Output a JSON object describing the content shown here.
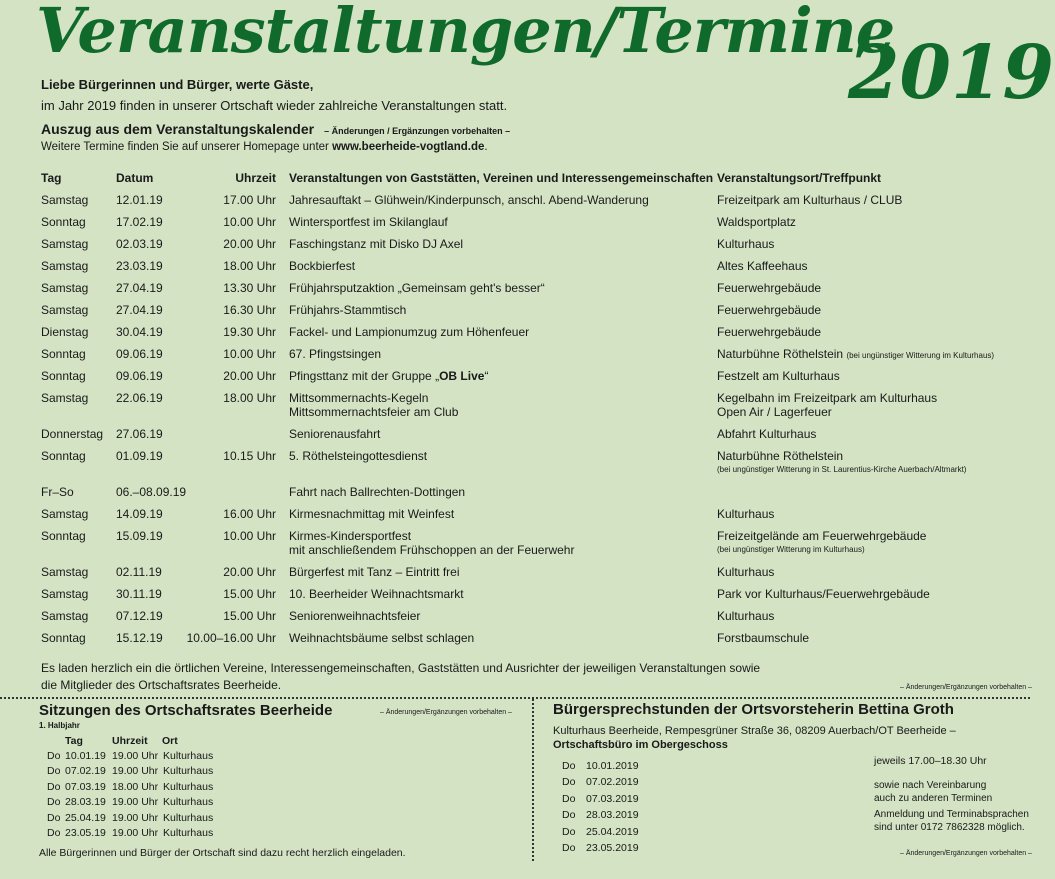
{
  "header": {
    "title": "Veranstaltungen/Termine",
    "year": "2019",
    "greeting": "Liebe Bürgerinnen und Bürger, werte Gäste,",
    "intro": "im Jahr 2019 finden in unserer Ortschaft wieder zahlreiche Veranstaltungen statt.",
    "excerpt": "Auszug aus dem Veranstaltungskalender",
    "excerpt_note": "– Änderungen / Ergänzungen vorbehalten –",
    "more": "Weitere Termine finden Sie auf unserer Homepage unter ",
    "homepage": "www.beerheide-vogtland.de",
    "more_end": "."
  },
  "table": {
    "columns": [
      "Tag",
      "Datum",
      "Uhrzeit",
      "Veranstaltungen von Gaststätten, Vereinen und Interessengemeinschaften",
      "Veranstaltungsort/Treffpunkt"
    ],
    "rows": [
      {
        "tag": "Samstag",
        "datum": "12.01.19",
        "zeit": "17.00 Uhr",
        "event": [
          "Jahresauftakt – Glühwein/Kinderpunsch, anschl. Abend-Wanderung"
        ],
        "ort": [
          "Freizeitpark am Kulturhaus / CLUB"
        ]
      },
      {
        "tag": "Sonntag",
        "datum": "17.02.19",
        "zeit": "10.00 Uhr",
        "event": [
          "Wintersportfest im Skilanglauf"
        ],
        "ort": [
          "Waldsportplatz"
        ]
      },
      {
        "tag": "Samstag",
        "datum": "02.03.19",
        "zeit": "20.00 Uhr",
        "event": [
          "Faschingstanz mit Disko DJ Axel"
        ],
        "ort": [
          "Kulturhaus"
        ]
      },
      {
        "tag": "Samstag",
        "datum": "23.03.19",
        "zeit": "18.00 Uhr",
        "event": [
          "Bockbierfest"
        ],
        "ort": [
          "Altes Kaffeehaus"
        ]
      },
      {
        "tag": "Samstag",
        "datum": "27.04.19",
        "zeit": "13.30 Uhr",
        "event": [
          "Frühjahrsputzaktion „Gemeinsam geht's besser“"
        ],
        "ort": [
          "Feuerwehrgebäude"
        ]
      },
      {
        "tag": "Samstag",
        "datum": "27.04.19",
        "zeit": "16.30 Uhr",
        "event": [
          "Frühjahrs-Stammtisch"
        ],
        "ort": [
          "Feuerwehrgebäude"
        ]
      },
      {
        "tag": "Dienstag",
        "datum": "30.04.19",
        "zeit": "19.30 Uhr",
        "event": [
          "Fackel- und Lampionumzug zum Höhenfeuer"
        ],
        "ort": [
          "Feuerwehrgebäude"
        ]
      },
      {
        "tag": "Sonntag",
        "datum": "09.06.19",
        "zeit": "10.00 Uhr",
        "event": [
          "67. Pfingstsingen"
        ],
        "ort": [
          "Naturbühne Röthelstein"
        ],
        "ort_note_inline": "(bei ungünstiger Witterung im Kulturhaus)"
      },
      {
        "tag": "Sonntag",
        "datum": "09.06.19",
        "zeit": "20.00 Uhr",
        "event": [
          "Pfingsttanz mit der Gruppe „"
        ],
        "event_bold": "OB Live",
        "event_end": "“",
        "ort": [
          "Festzelt am Kulturhaus"
        ]
      },
      {
        "tag": "Samstag",
        "datum": "22.06.19",
        "zeit": "18.00 Uhr",
        "event": [
          "Mittsommernachts-Kegeln",
          "Mittsommernachtsfeier am Club"
        ],
        "ort": [
          "Kegelbahn im Freizeitpark am Kulturhaus",
          "Open Air / Lagerfeuer"
        ]
      },
      {
        "tag": "Donnerstag",
        "datum": "27.06.19",
        "zeit": "",
        "event": [
          "Seniorenausfahrt"
        ],
        "ort": [
          "Abfahrt Kulturhaus"
        ]
      },
      {
        "tag": "Sonntag",
        "datum": "01.09.19",
        "zeit": "10.15 Uhr",
        "event": [
          "5. Röthelsteingottesdienst"
        ],
        "ort": [
          "Naturbühne Röthelstein"
        ],
        "ort_note": "(bei ungünstiger Witterung in St. Laurentius-Kirche Auerbach/Altmarkt)"
      },
      {
        "tag": "Fr–So",
        "datum": "06.–08.09.19",
        "zeit": "",
        "event": [
          "Fahrt nach Ballrechten-Dottingen"
        ],
        "ort": [
          ""
        ]
      },
      {
        "tag": "Samstag",
        "datum": "14.09.19",
        "zeit": "16.00 Uhr",
        "event": [
          "Kirmesnachmittag mit Weinfest"
        ],
        "ort": [
          "Kulturhaus"
        ]
      },
      {
        "tag": "Sonntag",
        "datum": "15.09.19",
        "zeit": "10.00 Uhr",
        "event": [
          "Kirmes-Kindersportfest",
          "mit anschließendem Frühschoppen an der Feuerwehr"
        ],
        "ort": [
          "Freizeitgelände am Feuerwehrgebäude"
        ],
        "ort_note": "(bei ungünstiger Witterung im Kulturhaus)"
      },
      {
        "tag": "Samstag",
        "datum": "02.11.19",
        "zeit": "20.00 Uhr",
        "event": [
          "Bürgerfest mit Tanz – Eintritt frei"
        ],
        "ort": [
          "Kulturhaus"
        ]
      },
      {
        "tag": "Samstag",
        "datum": "30.11.19",
        "zeit": "15.00 Uhr",
        "event": [
          "10. Beerheider Weihnachtsmarkt"
        ],
        "ort": [
          "Park vor Kulturhaus/Feuerwehrgebäude"
        ]
      },
      {
        "tag": "Samstag",
        "datum": "07.12.19",
        "zeit": "15.00 Uhr",
        "event": [
          "Seniorenweihnachtsfeier"
        ],
        "ort": [
          "Kulturhaus"
        ]
      },
      {
        "tag": "Sonntag",
        "datum": "15.12.19",
        "zeit": "10.00–16.00 Uhr",
        "event": [
          "Weihnachtsbäume selbst schlagen"
        ],
        "ort": [
          "Forstbaumschule"
        ]
      }
    ]
  },
  "invite": {
    "line1": "Es laden herzlich ein die örtlichen Vereine, Interessengemeinschaften, Gaststätten und Ausrichter der jeweiligen Veranstaltungen sowie",
    "line2": "die Mitglieder des Ortschaftsrates Beerheide.",
    "note": "– Änderungen/Ergänzungen vorbehalten –"
  },
  "council": {
    "title": "Sitzungen des Ortschaftsrates Beerheide",
    "note": "– Änderungen/Ergänzungen vorbehalten –",
    "half": "1. Halbjahr",
    "columns": [
      "Tag",
      "Uhrzeit",
      "Ort"
    ],
    "rows": [
      [
        "Do",
        "10.01.19",
        "19.00 Uhr",
        "Kulturhaus"
      ],
      [
        "Do",
        "07.02.19",
        "19.00 Uhr",
        "Kulturhaus"
      ],
      [
        "Do",
        "07.03.19",
        "18.00 Uhr",
        "Kulturhaus"
      ],
      [
        "Do",
        "28.03.19",
        "19.00 Uhr",
        "Kulturhaus"
      ],
      [
        "Do",
        "25.04.19",
        "19.00 Uhr",
        "Kulturhaus"
      ],
      [
        "Do",
        "23.05.19",
        "19.00 Uhr",
        "Kulturhaus"
      ]
    ],
    "footer": "Alle Bürgerinnen und Bürger der Ortschaft sind dazu recht herzlich eingeladen."
  },
  "office": {
    "title": "Bürgersprechstunden der Ortsvorsteherin Bettina Groth",
    "address": "Kulturhaus Beerheide, Rempesgrüner Straße 36, 08209 Auerbach/OT Beerheide –",
    "location": "Ortschaftsbüro im Obergeschoss",
    "rows": [
      [
        "Do",
        "10.01.2019"
      ],
      [
        "Do",
        "07.02.2019"
      ],
      [
        "Do",
        "07.03.2019"
      ],
      [
        "Do",
        "28.03.2019"
      ],
      [
        "Do",
        "25.04.2019"
      ],
      [
        "Do",
        "23.05.2019"
      ]
    ],
    "hours": "jeweils 17.00–18.30 Uhr",
    "extra1": "sowie nach Vereinbarung",
    "extra2": "auch zu anderen Terminen",
    "contact1": "Anmeldung und Terminabsprachen",
    "contact2": "sind unter 0172 7862328 möglich.",
    "note": "– Änderungen/Ergänzungen vorbehalten –"
  }
}
